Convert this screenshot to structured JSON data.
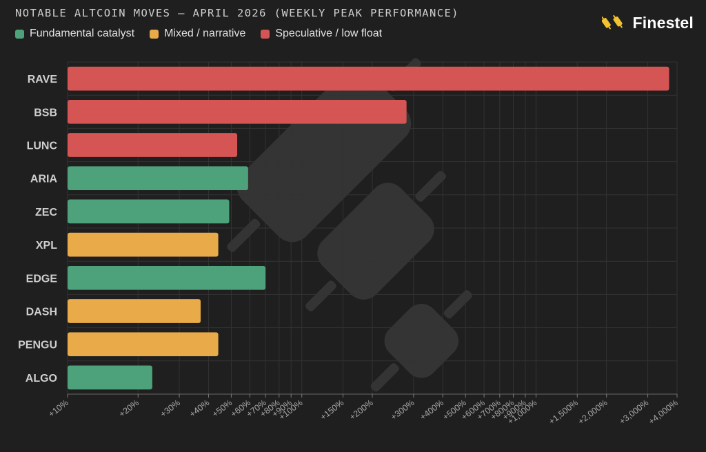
{
  "header": {
    "title": "NOTABLE ALTCOIN MOVES — APRIL 2026 (WEEKLY PEAK PERFORMANCE)",
    "brand": "Finestel"
  },
  "colors": {
    "fundamental": "#4da27b",
    "mixed": "#e9aa49",
    "speculative": "#d55555",
    "background": "#1f1f1f",
    "grid": "#333333"
  },
  "legend": [
    {
      "label": "Fundamental catalyst",
      "color": "#4da27b"
    },
    {
      "label": "Mixed / narrative",
      "color": "#e9aa49"
    },
    {
      "label": "Speculative / low float",
      "color": "#d55555"
    }
  ],
  "chart_data": {
    "type": "bar",
    "orientation": "horizontal",
    "xscale": "log",
    "xlim": [
      10,
      4000
    ],
    "grid": true,
    "legend_position": "top-left",
    "categories": [
      "RAVE",
      "BSB",
      "LUNC",
      "ARIA",
      "ZEC",
      "XPL",
      "EDGE",
      "DASH",
      "PENGU",
      "ALGO"
    ],
    "values": [
      3700,
      280,
      53,
      59,
      49,
      44,
      70,
      37,
      44,
      23
    ],
    "bar_groups": [
      "speculative",
      "speculative",
      "speculative",
      "fundamental",
      "fundamental",
      "mixed",
      "fundamental",
      "mixed",
      "mixed",
      "fundamental"
    ],
    "x_ticks": [
      {
        "value": 10,
        "label": "+10%"
      },
      {
        "value": 20,
        "label": "+20%"
      },
      {
        "value": 30,
        "label": "+30%"
      },
      {
        "value": 40,
        "label": "+40%"
      },
      {
        "value": 50,
        "label": "+50%"
      },
      {
        "value": 60,
        "label": "+60%"
      },
      {
        "value": 70,
        "label": "+70%"
      },
      {
        "value": 80,
        "label": "+80%"
      },
      {
        "value": 90,
        "label": "+90%"
      },
      {
        "value": 100,
        "label": "+100%"
      },
      {
        "value": 150,
        "label": "+150%"
      },
      {
        "value": 200,
        "label": "+200%"
      },
      {
        "value": 300,
        "label": "+300%"
      },
      {
        "value": 400,
        "label": "+400%"
      },
      {
        "value": 500,
        "label": "+500%"
      },
      {
        "value": 600,
        "label": "+600%"
      },
      {
        "value": 700,
        "label": "+700%"
      },
      {
        "value": 800,
        "label": "+800%"
      },
      {
        "value": 900,
        "label": "+900%"
      },
      {
        "value": 1000,
        "label": "+1,000%"
      },
      {
        "value": 1500,
        "label": "+1,500%"
      },
      {
        "value": 2000,
        "label": "+2,000%"
      },
      {
        "value": 3000,
        "label": "+3,000%"
      },
      {
        "value": 4000,
        "label": "+4,000%"
      }
    ]
  }
}
